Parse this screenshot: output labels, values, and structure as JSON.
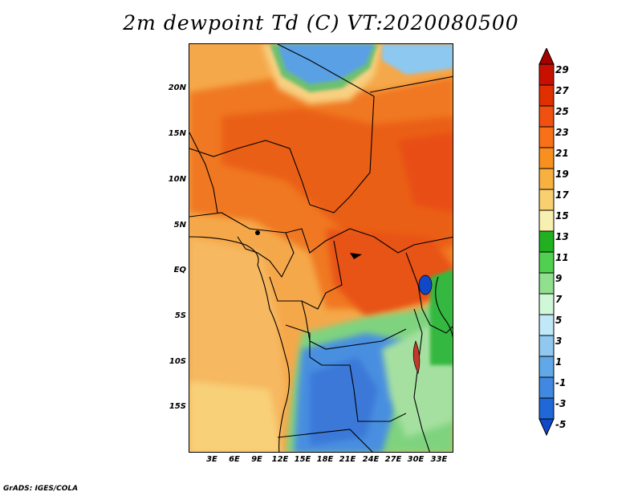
{
  "title": "2m dewpoint Td (C) VT:2020080500",
  "credit": "GrADS: IGES/COLA",
  "map": {
    "region": "Central/West Africa",
    "lat_labels": [
      "20N",
      "15N",
      "10N",
      "5N",
      "EQ",
      "5S",
      "10S",
      "15S"
    ],
    "lon_labels": [
      "3E",
      "6E",
      "9E",
      "12E",
      "15E",
      "18E",
      "21E",
      "24E",
      "27E",
      "30E",
      "33E"
    ]
  },
  "colorbar": {
    "labels": [
      "29",
      "27",
      "25",
      "23",
      "21",
      "19",
      "17",
      "15",
      "13",
      "11",
      "9",
      "7",
      "5",
      "3",
      "1",
      "-1",
      "-3",
      "-5"
    ],
    "colors": [
      "#a50000",
      "#c81000",
      "#e03000",
      "#f05010",
      "#f87018",
      "#f89020",
      "#f8b040",
      "#f8d070",
      "#f8f0b0",
      "#20b020",
      "#50d050",
      "#90e090",
      "#d0f8d8",
      "#c0e8f8",
      "#90c8f0",
      "#60a8e8",
      "#4088e0",
      "#2068d8",
      "#1048c8"
    ]
  },
  "colors": {
    "ocean_warm": "#f7b44f",
    "land_hot": "#f26b1a",
    "land_very_hot": "#e94e14",
    "dry_blue": "#4a8fe0",
    "green": "#2fb33a"
  }
}
